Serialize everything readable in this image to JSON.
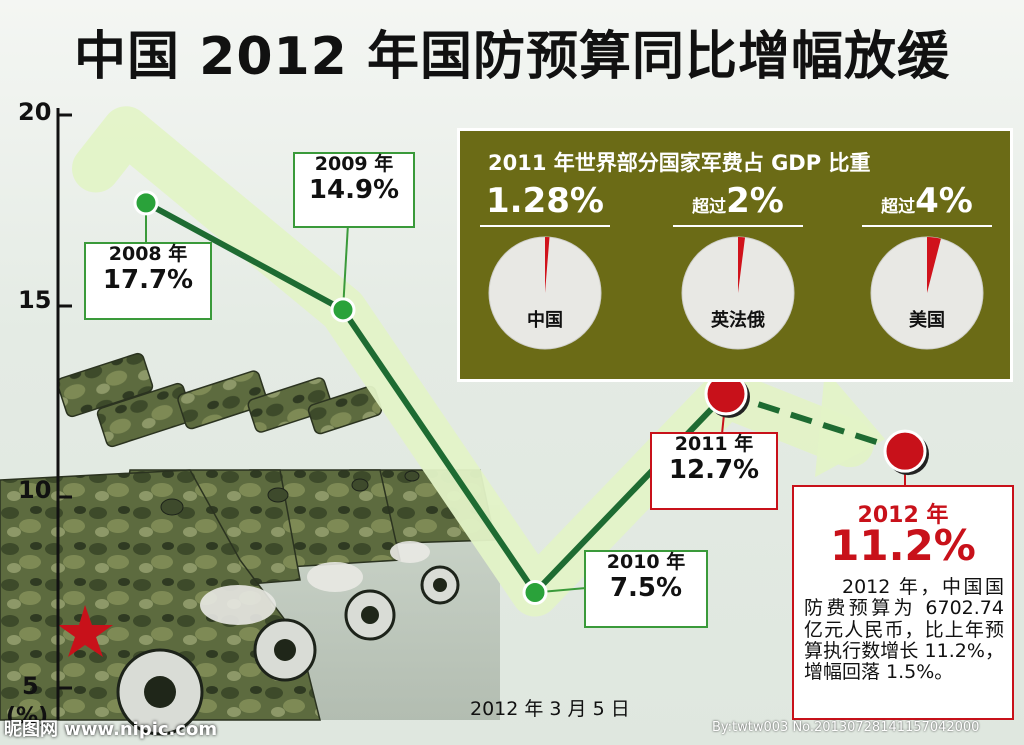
{
  "title": "中国 2012 年国防预算同比增幅放缓",
  "chart_data": {
    "type": "line",
    "title": "中国 2012 年国防预算同比增幅放缓",
    "y_unit": "(%)",
    "ylim": [
      5,
      20
    ],
    "yticks": [
      20,
      15,
      10,
      5
    ],
    "series": [
      {
        "points": [
          {
            "x": "2008",
            "y": 17.7,
            "year_label": "2008 年",
            "value_label": "17.7%"
          },
          {
            "x": "2009",
            "y": 14.9,
            "year_label": "2009 年",
            "value_label": "14.9%"
          },
          {
            "x": "2010",
            "y": 7.5,
            "year_label": "2010 年",
            "value_label": "7.5%"
          },
          {
            "x": "2011",
            "y": 12.7,
            "year_label": "2011 年",
            "value_label": "12.7%"
          },
          {
            "x": "2012",
            "y": 11.2,
            "year_label": "2012 年",
            "value_label": "11.2%"
          }
        ]
      }
    ],
    "line_color": "#1e6b32",
    "band_color": "#e3f3c7",
    "point_colors": {
      "past": "#2aa23a",
      "recent": "#c8111a"
    }
  },
  "gdp_panel": {
    "title": "2011 年世界部分国家军费占 GDP 比重",
    "items": [
      {
        "prefix": "",
        "value": "1.28%",
        "country": "中国",
        "fraction": 0.0128
      },
      {
        "prefix": "超过",
        "value": "2%",
        "country": "英法俄",
        "fraction": 0.02
      },
      {
        "prefix": "超过",
        "value": "4%",
        "country": "美国",
        "fraction": 0.04
      }
    ],
    "pie_color": "#e8e8e4",
    "slice_color": "#d0121b",
    "bg_color": "#6b6b16"
  },
  "box_2012": {
    "year": "2012 年",
    "value": "11.2%",
    "desc": "2012 年，中国国防费预算为 6702.74 亿元人民币，比上年预算执行数增长 11.2%，增幅回落 1.5%。"
  },
  "date": "2012 年 3 月 5 日",
  "watermark_left": "昵图网 www.nipic.com",
  "watermark_right": "By:twtw003 No.20130728141157042000"
}
